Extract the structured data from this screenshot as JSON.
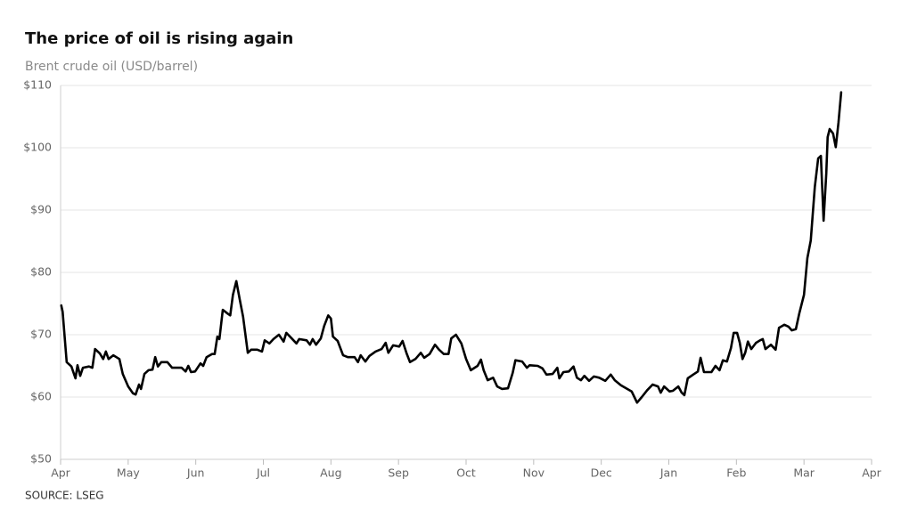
{
  "chart_data": {
    "type": "line",
    "title": "The price of oil is rising again",
    "subtitle": "Brent crude oil (USD/barrel)",
    "source": "SOURCE: LSEG",
    "color": "#000000",
    "grid": true,
    "xlim": [
      0,
      12
    ],
    "xticks": [
      {
        "value": 0,
        "label": "Apr"
      },
      {
        "value": 1,
        "label": "May"
      },
      {
        "value": 2,
        "label": "Jun"
      },
      {
        "value": 3,
        "label": "Jul"
      },
      {
        "value": 4,
        "label": "Aug"
      },
      {
        "value": 5,
        "label": "Sep"
      },
      {
        "value": 6,
        "label": "Oct"
      },
      {
        "value": 7,
        "label": "Nov"
      },
      {
        "value": 8,
        "label": "Dec"
      },
      {
        "value": 9,
        "label": "Jan"
      },
      {
        "value": 10,
        "label": "Feb"
      },
      {
        "value": 11,
        "label": "Mar"
      },
      {
        "value": 12,
        "label": "Apr"
      }
    ],
    "ylim": [
      50,
      110
    ],
    "yticks": [
      {
        "value": 50,
        "label": "$50"
      },
      {
        "value": 60,
        "label": "$60"
      },
      {
        "value": 70,
        "label": "$70"
      },
      {
        "value": 80,
        "label": "$80"
      },
      {
        "value": 90,
        "label": "$90"
      },
      {
        "value": 100,
        "label": "$100"
      },
      {
        "value": 110,
        "label": "$110"
      }
    ],
    "x": [
      0.01,
      0.03,
      0.09,
      0.16,
      0.22,
      0.25,
      0.29,
      0.33,
      0.42,
      0.47,
      0.51,
      0.58,
      0.63,
      0.67,
      0.71,
      0.78,
      0.87,
      0.92,
      1.0,
      1.07,
      1.11,
      1.16,
      1.19,
      1.24,
      1.3,
      1.36,
      1.4,
      1.44,
      1.49,
      1.58,
      1.65,
      1.79,
      1.85,
      1.89,
      1.93,
      1.99,
      2.07,
      2.11,
      2.16,
      2.24,
      2.28,
      2.32,
      2.35,
      2.4,
      2.47,
      2.51,
      2.55,
      2.6,
      2.65,
      2.7,
      2.77,
      2.82,
      2.91,
      2.98,
      3.02,
      3.09,
      3.15,
      3.23,
      3.3,
      3.34,
      3.42,
      3.49,
      3.53,
      3.64,
      3.69,
      3.73,
      3.78,
      3.85,
      3.9,
      3.96,
      4.0,
      4.03,
      4.1,
      4.18,
      4.25,
      4.35,
      4.4,
      4.44,
      4.51,
      4.57,
      4.66,
      4.75,
      4.81,
      4.85,
      4.92,
      5.01,
      5.06,
      5.12,
      5.17,
      5.25,
      5.33,
      5.38,
      5.46,
      5.54,
      5.6,
      5.67,
      5.74,
      5.78,
      5.85,
      5.93,
      6.0,
      6.07,
      6.17,
      6.22,
      6.26,
      6.32,
      6.4,
      6.46,
      6.53,
      6.62,
      6.69,
      6.73,
      6.83,
      6.9,
      6.94,
      7.06,
      7.13,
      7.19,
      7.28,
      7.35,
      7.38,
      7.44,
      7.52,
      7.59,
      7.64,
      7.7,
      7.75,
      7.82,
      7.89,
      7.97,
      8.06,
      8.14,
      8.2,
      8.29,
      8.37,
      8.45,
      8.49,
      8.53,
      8.6,
      8.68,
      8.76,
      8.84,
      8.88,
      8.93,
      9.01,
      9.06,
      9.14,
      9.19,
      9.23,
      9.28,
      9.36,
      9.43,
      9.47,
      9.52,
      9.63,
      9.69,
      9.75,
      9.8,
      9.86,
      9.92,
      9.96,
      10.01,
      10.05,
      10.09,
      10.13,
      10.17,
      10.22,
      10.29,
      10.35,
      10.39,
      10.43,
      10.51,
      10.58,
      10.63,
      10.71,
      10.77,
      10.82,
      10.88,
      10.93,
      11.0,
      11.05,
      11.1,
      11.16,
      11.21,
      11.25,
      11.29,
      11.33,
      11.35,
      11.38,
      11.43,
      11.47,
      11.51,
      11.55
    ],
    "values": [
      74.7,
      73.7,
      65.6,
      64.9,
      63,
      65.1,
      63.4,
      64.7,
      64.9,
      64.7,
      67.7,
      67,
      66.1,
      67.3,
      66.1,
      66.7,
      66.1,
      63.7,
      61.7,
      60.6,
      60.4,
      62,
      61.3,
      63.7,
      64.3,
      64.4,
      66.4,
      64.9,
      65.6,
      65.6,
      64.7,
      64.7,
      64.1,
      65,
      64,
      64.1,
      65.4,
      65,
      66.4,
      66.9,
      66.9,
      69.7,
      69.3,
      74,
      73.4,
      73.1,
      76.4,
      78.6,
      75.7,
      72.9,
      67.1,
      67.6,
      67.6,
      67.3,
      69.1,
      68.6,
      69.3,
      70,
      68.9,
      70.3,
      69.4,
      68.6,
      69.3,
      69.1,
      68.4,
      69.3,
      68.4,
      69.4,
      71.4,
      73.1,
      72.6,
      69.7,
      69,
      66.7,
      66.4,
      66.4,
      65.6,
      66.7,
      65.7,
      66.6,
      67.3,
      67.7,
      68.7,
      67.1,
      68.3,
      68.1,
      69,
      67,
      65.6,
      66.1,
      67.1,
      66.3,
      66.9,
      68.4,
      67.6,
      66.9,
      66.9,
      69.4,
      70,
      68.6,
      66.1,
      64.3,
      65,
      66,
      64.3,
      62.7,
      63.1,
      61.7,
      61.3,
      61.4,
      63.9,
      65.9,
      65.7,
      64.7,
      65.1,
      65,
      64.6,
      63.6,
      63.7,
      64.7,
      63,
      64,
      64.1,
      64.9,
      63.1,
      62.7,
      63.4,
      62.6,
      63.3,
      63.1,
      62.6,
      63.6,
      62.7,
      61.9,
      61.4,
      60.9,
      60,
      59.1,
      60,
      61.1,
      62,
      61.7,
      60.7,
      61.7,
      60.9,
      61,
      61.7,
      60.7,
      60.3,
      63,
      63.6,
      64.1,
      66.3,
      64,
      64,
      65,
      64.3,
      65.9,
      65.7,
      67.9,
      70.3,
      70.3,
      68.7,
      66.1,
      67.1,
      68.9,
      67.7,
      68.7,
      69.1,
      69.3,
      67.7,
      68.4,
      67.6,
      71.1,
      71.6,
      71.3,
      70.7,
      70.9,
      73.4,
      76.4,
      82.3,
      85.1,
      93.7,
      98.3,
      98.7,
      88.3,
      95.9,
      101.7,
      103,
      102.3,
      100.1,
      104,
      108.9
    ]
  }
}
